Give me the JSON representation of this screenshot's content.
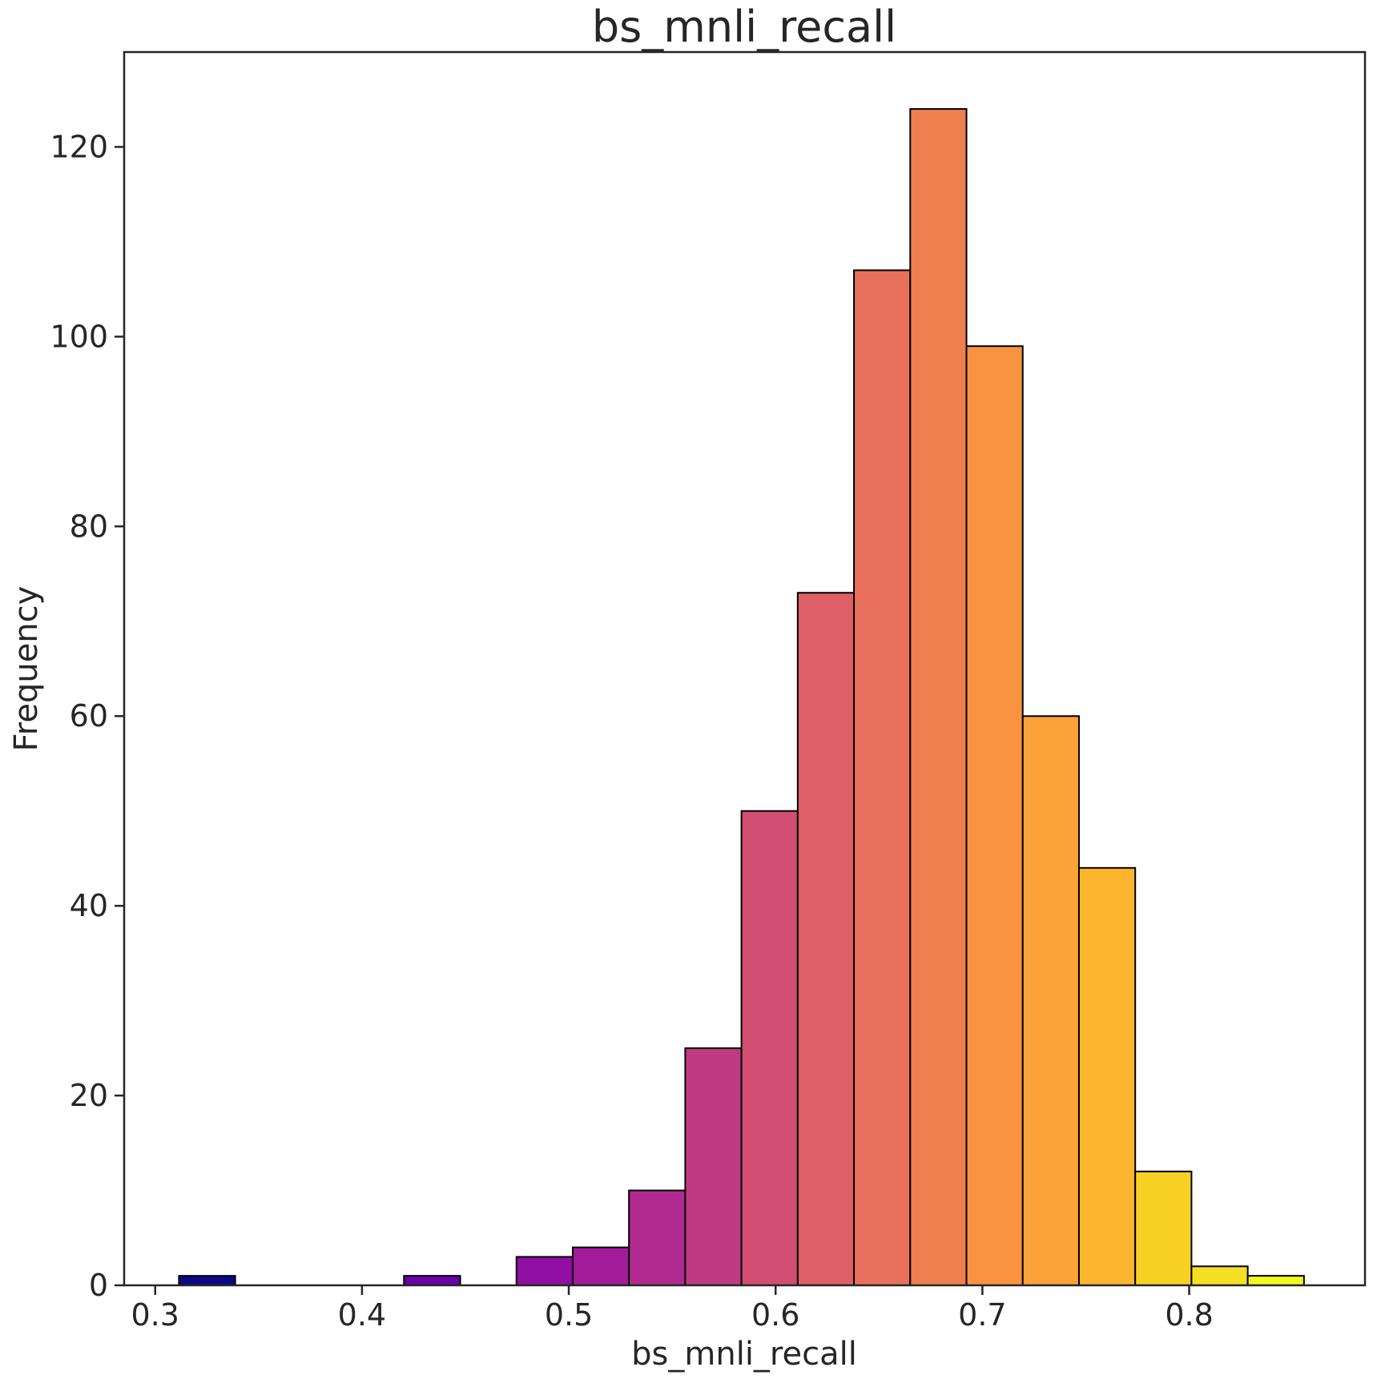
{
  "chart_data": {
    "type": "bar",
    "title": "bs_mnli_recall",
    "xlabel": "bs_mnli_recall",
    "ylabel": "Frequency",
    "xlim": [
      0.285,
      0.885
    ],
    "ylim": [
      0,
      130
    ],
    "xticks": [
      0.3,
      0.4,
      0.5,
      0.6,
      0.7,
      0.8
    ],
    "xtick_labels": [
      "0.3",
      "0.4",
      "0.5",
      "0.6",
      "0.7",
      "0.8"
    ],
    "yticks": [
      0,
      20,
      40,
      60,
      80,
      100,
      120
    ],
    "ytick_labels": [
      "0",
      "20",
      "40",
      "60",
      "80",
      "100",
      "120"
    ],
    "grid": false,
    "colormap": "plasma",
    "bins": [
      {
        "x0": 0.3115,
        "x1": 0.3387,
        "count": 1,
        "color": "#0d0887"
      },
      {
        "x0": 0.3387,
        "x1": 0.3659,
        "count": 0,
        "color": "#2a0593"
      },
      {
        "x0": 0.3659,
        "x1": 0.3931,
        "count": 0,
        "color": "#41049d"
      },
      {
        "x0": 0.3931,
        "x1": 0.4203,
        "count": 0,
        "color": "#5601a4"
      },
      {
        "x0": 0.4203,
        "x1": 0.4475,
        "count": 1,
        "color": "#6a00a8"
      },
      {
        "x0": 0.4475,
        "x1": 0.4747,
        "count": 0,
        "color": "#7e03a8"
      },
      {
        "x0": 0.4747,
        "x1": 0.5019,
        "count": 3,
        "color": "#920fa3"
      },
      {
        "x0": 0.5019,
        "x1": 0.5291,
        "count": 4,
        "color": "#a21c9a"
      },
      {
        "x0": 0.5291,
        "x1": 0.5563,
        "count": 10,
        "color": "#b12a90"
      },
      {
        "x0": 0.5563,
        "x1": 0.5835,
        "count": 25,
        "color": "#c03a83"
      },
      {
        "x0": 0.5835,
        "x1": 0.6107,
        "count": 50,
        "color": "#d14e72"
      },
      {
        "x0": 0.6107,
        "x1": 0.6379,
        "count": 73,
        "color": "#de5f65"
      },
      {
        "x0": 0.6379,
        "x1": 0.6651,
        "count": 107,
        "color": "#e8705c"
      },
      {
        "x0": 0.6651,
        "x1": 0.6923,
        "count": 124,
        "color": "#f07f4f"
      },
      {
        "x0": 0.6923,
        "x1": 0.7195,
        "count": 99,
        "color": "#f89441"
      },
      {
        "x0": 0.7195,
        "x1": 0.7467,
        "count": 60,
        "color": "#fba238"
      },
      {
        "x0": 0.7467,
        "x1": 0.7739,
        "count": 44,
        "color": "#fdb42f"
      },
      {
        "x0": 0.7739,
        "x1": 0.8011,
        "count": 12,
        "color": "#f8d024"
      },
      {
        "x0": 0.8011,
        "x1": 0.8283,
        "count": 2,
        "color": "#f4df24"
      },
      {
        "x0": 0.8283,
        "x1": 0.8555,
        "count": 1,
        "color": "#f0f921"
      }
    ]
  }
}
